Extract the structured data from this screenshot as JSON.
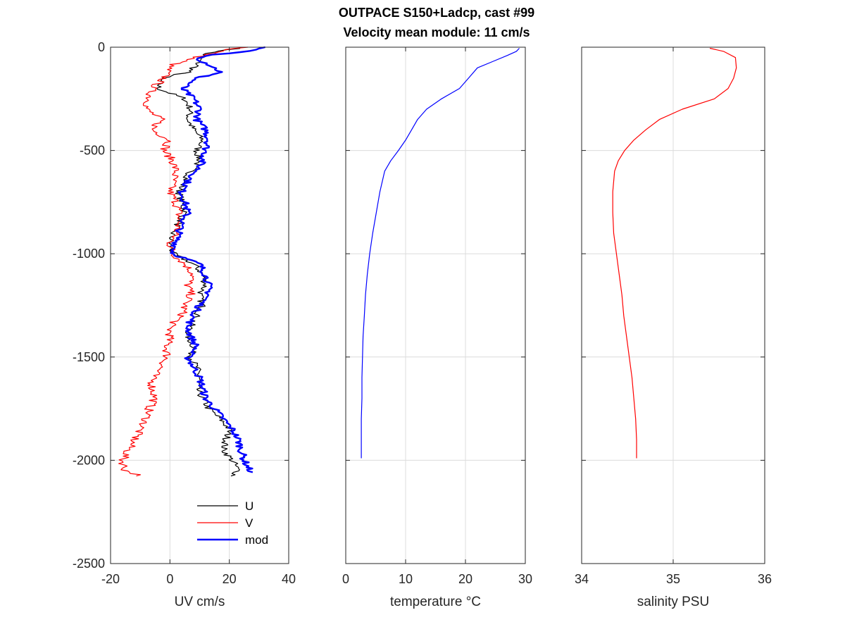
{
  "figure": {
    "title_line1": "OUTPACE S150+Ladcp, cast #99",
    "title_line2": "Velocity mean module:  11 cm/s"
  },
  "chart_data": [
    {
      "type": "line",
      "xlabel": "UV cm/s",
      "ylabel": "",
      "xlim": [
        -20,
        40
      ],
      "ylim": [
        -2500,
        0
      ],
      "xticks": [
        -20,
        0,
        20,
        40
      ],
      "xtick_labels": [
        "-20",
        "0",
        "20",
        "40"
      ],
      "yticks": [
        0,
        -500,
        -1000,
        -1500,
        -2000,
        -2500
      ],
      "ytick_labels": [
        "0",
        "-500",
        "-1000",
        "-1500",
        "-2000",
        "-2500"
      ],
      "grid": true,
      "legend": "bottom-right",
      "series": [
        {
          "name": "U",
          "color": "#000000",
          "depth": [
            0,
            -30,
            -60,
            -90,
            -120,
            -150,
            -200,
            -250,
            -300,
            -350,
            -400,
            -450,
            -500,
            -550,
            -600,
            -650,
            -700,
            -750,
            -800,
            -850,
            -900,
            -950,
            -1000,
            -1050,
            -1100,
            -1150,
            -1200,
            -1250,
            -1300,
            -1350,
            -1400,
            -1450,
            -1500,
            -1550,
            -1600,
            -1650,
            -1700,
            -1750,
            -1800,
            -1850,
            -1900,
            -1950,
            -2000,
            -2050,
            -2080
          ],
          "values": [
            25,
            12,
            10,
            9,
            6,
            -3,
            -4,
            5,
            7,
            6,
            8,
            11,
            9,
            10,
            7,
            5,
            3,
            4,
            5,
            3,
            1,
            0,
            1,
            8,
            11,
            12,
            10,
            11,
            9,
            7,
            6,
            8,
            7,
            9,
            10,
            9,
            11,
            13,
            17,
            20,
            19,
            18,
            21,
            23,
            21
          ]
        },
        {
          "name": "V",
          "color": "#ff0000",
          "depth": [
            0,
            -10,
            -30,
            -60,
            -90,
            -120,
            -150,
            -200,
            -250,
            -300,
            -350,
            -400,
            -450,
            -500,
            -550,
            -600,
            -650,
            -700,
            -750,
            -800,
            -850,
            -900,
            -950,
            -1000,
            -1050,
            -1100,
            -1150,
            -1200,
            -1250,
            -1300,
            -1350,
            -1400,
            -1450,
            -1500,
            -1550,
            -1600,
            -1650,
            -1700,
            -1750,
            -1800,
            -1850,
            -1900,
            -1950,
            -2000,
            -2050,
            -2080
          ],
          "values": [
            26,
            20,
            14,
            6,
            0,
            -1,
            -2,
            -6,
            -7,
            -8,
            -3,
            -6,
            0,
            -2,
            1,
            2,
            1,
            0,
            2,
            3,
            3,
            2,
            0,
            1,
            5,
            8,
            6,
            7,
            5,
            4,
            0,
            0,
            -1,
            -1,
            -3,
            -6,
            -6,
            -5,
            -7,
            -8,
            -10,
            -12,
            -14,
            -16,
            -15,
            -9
          ]
        },
        {
          "name": "mod",
          "color": "#0000ff",
          "depth": [
            0,
            -20,
            -40,
            -60,
            -90,
            -120,
            -150,
            -200,
            -250,
            -300,
            -350,
            -400,
            -450,
            -500,
            -550,
            -600,
            -650,
            -700,
            -750,
            -800,
            -850,
            -900,
            -950,
            -1000,
            -1050,
            -1100,
            -1150,
            -1200,
            -1250,
            -1300,
            -1350,
            -1400,
            -1450,
            -1500,
            -1550,
            -1600,
            -1650,
            -1700,
            -1750,
            -1800,
            -1850,
            -1900,
            -1950,
            -2000,
            -2050,
            -2060
          ],
          "values": [
            31,
            26,
            12,
            10,
            14,
            17,
            9,
            4,
            8,
            10,
            9,
            12,
            13,
            12,
            11,
            9,
            6,
            4,
            5,
            6,
            4,
            3,
            2,
            1,
            10,
            12,
            13,
            13,
            10,
            8,
            6,
            7,
            9,
            6,
            8,
            10,
            11,
            12,
            15,
            18,
            21,
            23,
            24,
            25,
            27,
            27
          ]
        }
      ]
    },
    {
      "type": "line",
      "xlabel": "temperature °C",
      "ylabel": "",
      "xlim": [
        0,
        30
      ],
      "ylim": [
        -2500,
        0
      ],
      "xticks": [
        0,
        10,
        20,
        30
      ],
      "xtick_labels": [
        "0",
        "10",
        "20",
        "30"
      ],
      "yticks": [
        0,
        -500,
        -1000,
        -1500,
        -2000,
        -2500
      ],
      "grid": true,
      "series": [
        {
          "color": "#0000ff",
          "depth": [
            -5,
            -20,
            -40,
            -70,
            -100,
            -150,
            -200,
            -250,
            -300,
            -350,
            -400,
            -450,
            -500,
            -550,
            -600,
            -700,
            -800,
            -900,
            -1000,
            -1100,
            -1200,
            -1300,
            -1400,
            -1500,
            -1600,
            -1700,
            -1800,
            -1900,
            -1990
          ],
          "values": [
            29.0,
            28.5,
            27.0,
            24.5,
            22.0,
            20.5,
            19.0,
            16.0,
            13.5,
            12.0,
            11.0,
            10.0,
            8.8,
            7.5,
            6.5,
            5.7,
            5.1,
            4.5,
            4.0,
            3.6,
            3.3,
            3.1,
            2.9,
            2.8,
            2.7,
            2.7,
            2.6,
            2.6,
            2.6
          ]
        }
      ]
    },
    {
      "type": "line",
      "xlabel": "salinity PSU",
      "ylabel": "",
      "xlim": [
        34,
        36
      ],
      "ylim": [
        -2500,
        0
      ],
      "xticks": [
        34,
        35,
        36
      ],
      "xtick_labels": [
        "34",
        "35",
        "36"
      ],
      "yticks": [
        0,
        -500,
        -1000,
        -1500,
        -2000,
        -2500
      ],
      "grid": true,
      "series": [
        {
          "color": "#ff0000",
          "depth": [
            -5,
            -20,
            -50,
            -100,
            -150,
            -200,
            -250,
            -300,
            -350,
            -400,
            -450,
            -500,
            -550,
            -600,
            -650,
            -700,
            -800,
            -900,
            -1000,
            -1100,
            -1200,
            -1300,
            -1400,
            -1500,
            -1600,
            -1700,
            -1800,
            -1900,
            -1990
          ],
          "values": [
            35.4,
            35.55,
            35.68,
            35.69,
            35.66,
            35.6,
            35.45,
            35.1,
            34.85,
            34.7,
            34.57,
            34.47,
            34.4,
            34.36,
            34.35,
            34.34,
            34.34,
            34.35,
            34.38,
            34.41,
            34.44,
            34.46,
            34.49,
            34.52,
            34.55,
            34.57,
            34.59,
            34.6,
            34.6
          ]
        }
      ]
    }
  ]
}
